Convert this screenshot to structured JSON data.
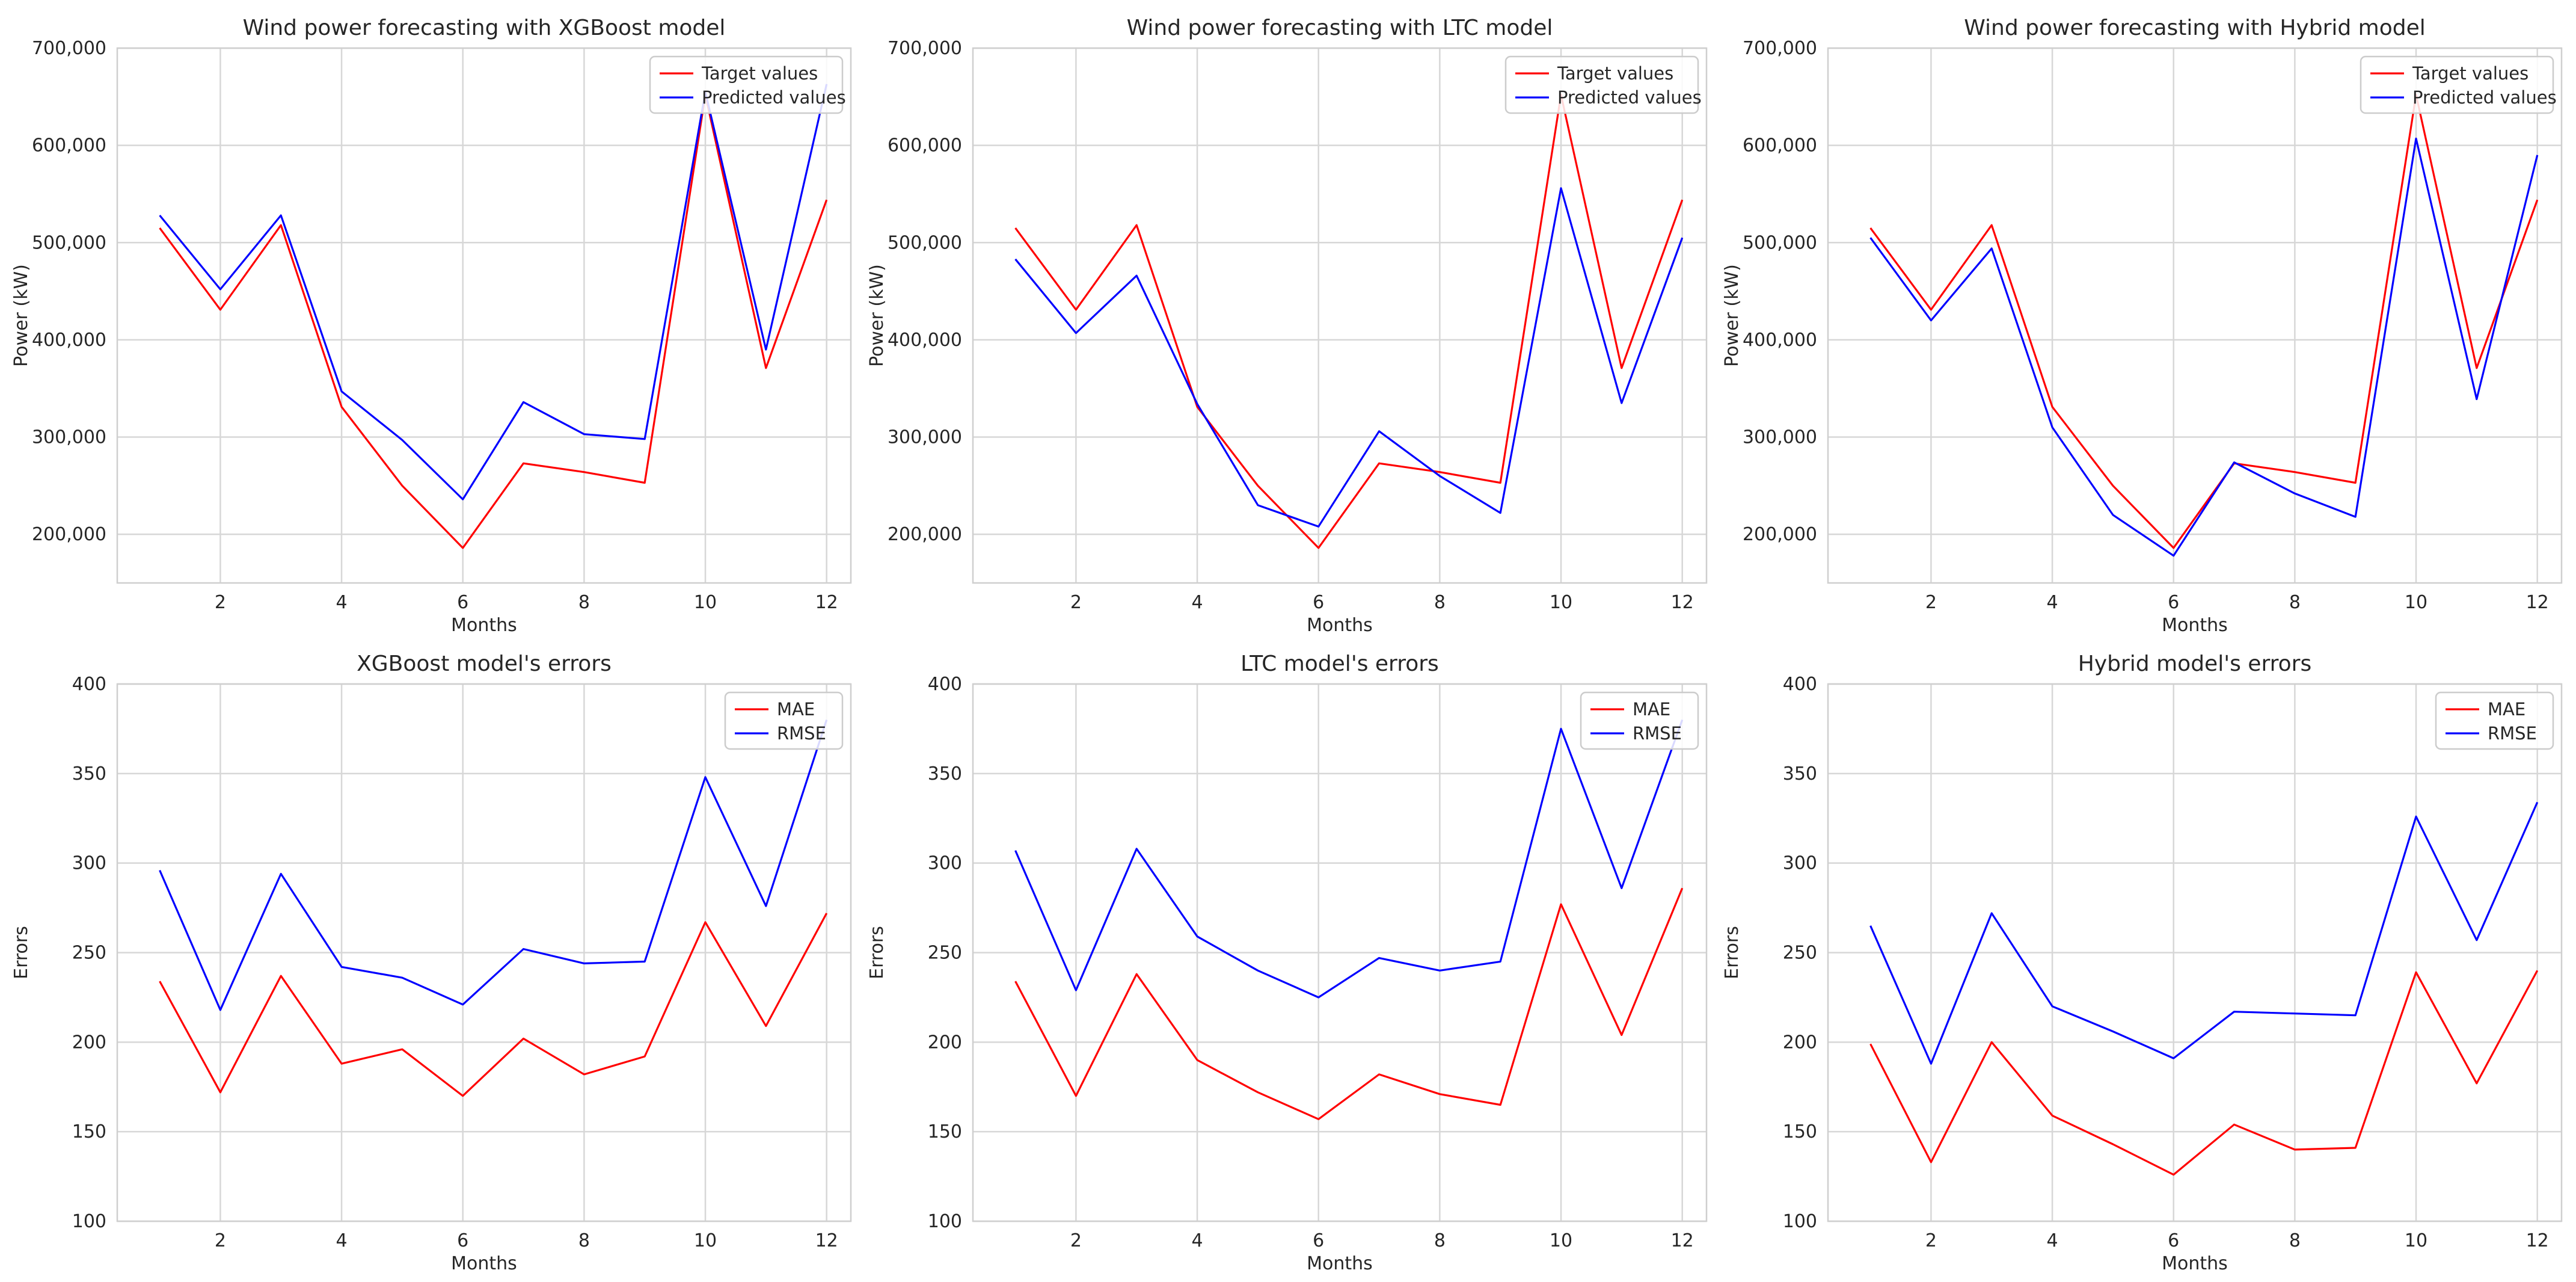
{
  "colors": {
    "target": "#ff0000",
    "predicted": "#0000ff"
  },
  "chart_data": [
    {
      "type": "line",
      "title": "Wind power forecasting with XGBoost model",
      "xlabel": "Months",
      "ylabel": "Power (kW)",
      "x": [
        1,
        2,
        3,
        4,
        5,
        6,
        7,
        8,
        9,
        10,
        11,
        12
      ],
      "xlim": [
        0.3,
        12.4
      ],
      "xticks": [
        2,
        4,
        6,
        8,
        10,
        12
      ],
      "ylim": [
        150000,
        700000
      ],
      "yticks": [
        200000,
        300000,
        400000,
        500000,
        600000,
        700000
      ],
      "ytick_labels": [
        "200,000",
        "300,000",
        "400,000",
        "500,000",
        "600,000",
        "700,000"
      ],
      "legend": "top-right",
      "series": [
        {
          "name": "Target values",
          "color": "#ff0000",
          "values": [
            515000,
            431000,
            518000,
            331000,
            250000,
            186000,
            273000,
            264000,
            253000,
            652000,
            371000,
            544000
          ]
        },
        {
          "name": "Predicted values",
          "color": "#0000ff",
          "values": [
            528000,
            452000,
            528000,
            347000,
            297000,
            236000,
            336000,
            303000,
            298000,
            655000,
            390000,
            663000
          ]
        }
      ]
    },
    {
      "type": "line",
      "title": "Wind power forecasting with LTC model",
      "xlabel": "Months",
      "ylabel": "Power (kW)",
      "x": [
        1,
        2,
        3,
        4,
        5,
        6,
        7,
        8,
        9,
        10,
        11,
        12
      ],
      "xlim": [
        0.3,
        12.4
      ],
      "xticks": [
        2,
        4,
        6,
        8,
        10,
        12
      ],
      "ylim": [
        150000,
        700000
      ],
      "yticks": [
        200000,
        300000,
        400000,
        500000,
        600000,
        700000
      ],
      "ytick_labels": [
        "200,000",
        "300,000",
        "400,000",
        "500,000",
        "600,000",
        "700,000"
      ],
      "legend": "top-right",
      "series": [
        {
          "name": "Target values",
          "color": "#ff0000",
          "values": [
            515000,
            431000,
            518000,
            331000,
            250000,
            186000,
            273000,
            264000,
            253000,
            652000,
            371000,
            544000
          ]
        },
        {
          "name": "Predicted values",
          "color": "#0000ff",
          "values": [
            483000,
            407000,
            466000,
            334000,
            230000,
            208000,
            306000,
            260000,
            222000,
            556000,
            335000,
            505000
          ]
        }
      ]
    },
    {
      "type": "line",
      "title": "Wind power forecasting with Hybrid model",
      "xlabel": "Months",
      "ylabel": "Power (kW)",
      "x": [
        1,
        2,
        3,
        4,
        5,
        6,
        7,
        8,
        9,
        10,
        11,
        12
      ],
      "xlim": [
        0.3,
        12.4
      ],
      "xticks": [
        2,
        4,
        6,
        8,
        10,
        12
      ],
      "ylim": [
        150000,
        700000
      ],
      "yticks": [
        200000,
        300000,
        400000,
        500000,
        600000,
        700000
      ],
      "ytick_labels": [
        "200,000",
        "300,000",
        "400,000",
        "500,000",
        "600,000",
        "700,000"
      ],
      "legend": "top-right",
      "series": [
        {
          "name": "Target values",
          "color": "#ff0000",
          "values": [
            515000,
            431000,
            518000,
            331000,
            250000,
            186000,
            273000,
            264000,
            253000,
            652000,
            371000,
            544000
          ]
        },
        {
          "name": "Predicted values",
          "color": "#0000ff",
          "values": [
            505000,
            420000,
            494000,
            310000,
            220000,
            178000,
            274000,
            242000,
            218000,
            607000,
            339000,
            590000
          ]
        }
      ]
    },
    {
      "type": "line",
      "title": "XGBoost model's errors",
      "xlabel": "Months",
      "ylabel": "Errors",
      "x": [
        1,
        2,
        3,
        4,
        5,
        6,
        7,
        8,
        9,
        10,
        11,
        12
      ],
      "xlim": [
        0.3,
        12.4
      ],
      "xticks": [
        2,
        4,
        6,
        8,
        10,
        12
      ],
      "ylim": [
        100,
        400
      ],
      "yticks": [
        100,
        150,
        200,
        250,
        300,
        350,
        400
      ],
      "ytick_labels": [
        "100",
        "150",
        "200",
        "250",
        "300",
        "350",
        "400"
      ],
      "legend": "top-right",
      "series": [
        {
          "name": "MAE",
          "color": "#ff0000",
          "values": [
            234,
            172,
            237,
            188,
            196,
            170,
            202,
            182,
            192,
            267,
            209,
            272
          ]
        },
        {
          "name": "RMSE",
          "color": "#0000ff",
          "values": [
            296,
            218,
            294,
            242,
            236,
            221,
            252,
            244,
            245,
            348,
            276,
            380
          ]
        }
      ]
    },
    {
      "type": "line",
      "title": "LTC model's errors",
      "xlabel": "Months",
      "ylabel": "Errors",
      "x": [
        1,
        2,
        3,
        4,
        5,
        6,
        7,
        8,
        9,
        10,
        11,
        12
      ],
      "xlim": [
        0.3,
        12.4
      ],
      "xticks": [
        2,
        4,
        6,
        8,
        10,
        12
      ],
      "ylim": [
        100,
        400
      ],
      "yticks": [
        100,
        150,
        200,
        250,
        300,
        350,
        400
      ],
      "ytick_labels": [
        "100",
        "150",
        "200",
        "250",
        "300",
        "350",
        "400"
      ],
      "legend": "top-right",
      "series": [
        {
          "name": "MAE",
          "color": "#ff0000",
          "values": [
            234,
            170,
            238,
            190,
            172,
            157,
            182,
            171,
            165,
            277,
            204,
            286
          ]
        },
        {
          "name": "RMSE",
          "color": "#0000ff",
          "values": [
            307,
            229,
            308,
            259,
            240,
            225,
            247,
            240,
            245,
            375,
            286,
            380
          ]
        }
      ]
    },
    {
      "type": "line",
      "title": "Hybrid model's errors",
      "xlabel": "Months",
      "ylabel": "Errors",
      "x": [
        1,
        2,
        3,
        4,
        5,
        6,
        7,
        8,
        9,
        10,
        11,
        12
      ],
      "xlim": [
        0.3,
        12.4
      ],
      "xticks": [
        2,
        4,
        6,
        8,
        10,
        12
      ],
      "ylim": [
        100,
        400
      ],
      "yticks": [
        100,
        150,
        200,
        250,
        300,
        350,
        400
      ],
      "ytick_labels": [
        "100",
        "150",
        "200",
        "250",
        "300",
        "350",
        "400"
      ],
      "legend": "top-right",
      "series": [
        {
          "name": "MAE",
          "color": "#ff0000",
          "values": [
            199,
            133,
            200,
            159,
            143,
            126,
            154,
            140,
            141,
            239,
            177,
            240
          ]
        },
        {
          "name": "RMSE",
          "color": "#0000ff",
          "values": [
            265,
            188,
            272,
            220,
            206,
            191,
            217,
            216,
            215,
            326,
            257,
            334
          ]
        }
      ]
    }
  ]
}
